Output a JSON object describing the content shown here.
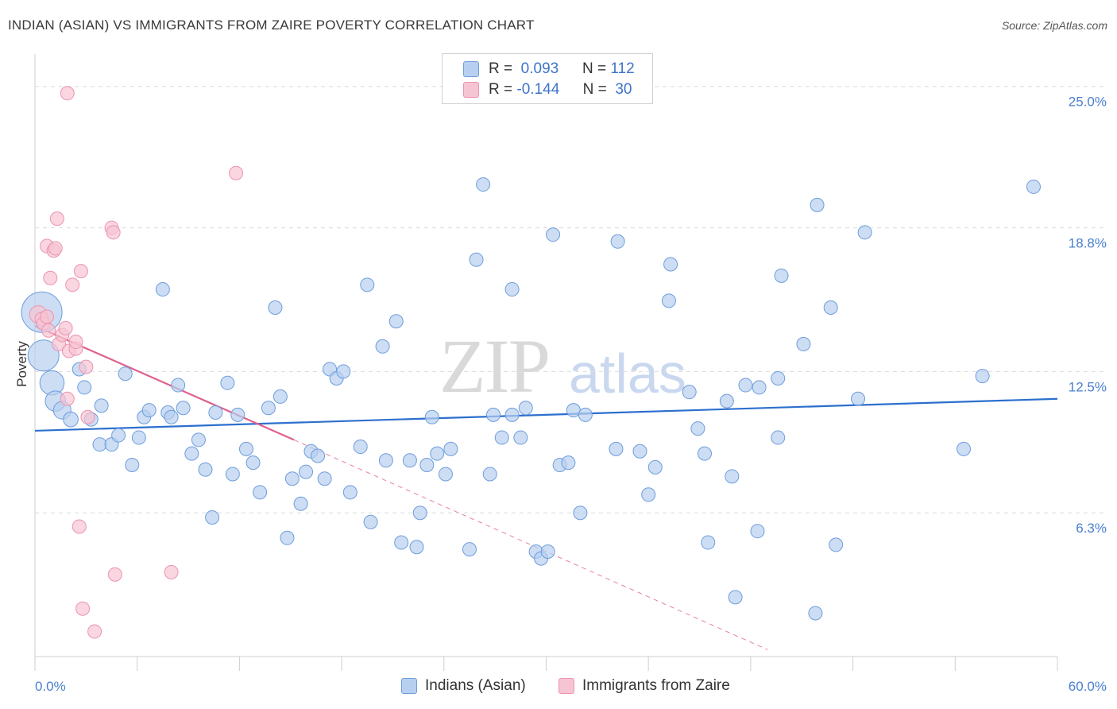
{
  "header": {
    "title": "INDIAN (ASIAN) VS IMMIGRANTS FROM ZAIRE POVERTY CORRELATION CHART",
    "source": "Source: ZipAtlas.com"
  },
  "watermark": {
    "zip": "ZIP",
    "atlas": "atlas"
  },
  "legend": {
    "rows": [
      {
        "r_label": "R =",
        "r_value": "0.093",
        "n_label": "N =",
        "n_value": "112"
      },
      {
        "r_label": "R =",
        "r_value": "-0.144",
        "n_label": "N =",
        "n_value": "30"
      }
    ]
  },
  "bottom_legend": {
    "items": [
      {
        "label": "Indians (Asian)"
      },
      {
        "label": "Immigrants from Zaire"
      }
    ]
  },
  "colors": {
    "blue_fill": "#b7cff0",
    "blue_stroke": "#6e9edc",
    "blue_line": "#2c6fce",
    "pink_fill": "#f7c4d3",
    "pink_stroke": "#ec93b0",
    "pink_line": "#e0608d",
    "grid": "#dcdcdc",
    "tick_text": "#4a7fcf"
  },
  "chart_data": {
    "type": "scatter",
    "title": "INDIAN (ASIAN) VS IMMIGRANTS FROM ZAIRE POVERTY CORRELATION CHART",
    "xlabel": "",
    "ylabel": "Poverty",
    "xlim": [
      0,
      60
    ],
    "ylim": [
      0,
      26
    ],
    "x_tick_labels": [
      "0.0%",
      "60.0%"
    ],
    "y_ticks": [
      {
        "value": 6.3,
        "label": "6.3%"
      },
      {
        "value": 12.5,
        "label": "12.5%"
      },
      {
        "value": 18.8,
        "label": "18.8%"
      },
      {
        "value": 25.0,
        "label": "25.0%"
      }
    ],
    "grid": "horizontal dashed",
    "legend_placement": "top-center",
    "series": [
      {
        "name": "Indians (Asian)",
        "color": "#b7cff0",
        "trend": {
          "x": [
            0,
            60
          ],
          "y": [
            9.9,
            11.3
          ],
          "style": "solid"
        },
        "points": [
          [
            0.4,
            15.1,
            3
          ],
          [
            0.5,
            13.2,
            2.3
          ],
          [
            1.0,
            12.0,
            1.8
          ],
          [
            1.2,
            11.2,
            1.5
          ],
          [
            1.6,
            10.8,
            1.3
          ],
          [
            2.1,
            10.4,
            1.1
          ],
          [
            2.6,
            12.6,
            1
          ],
          [
            2.9,
            11.8,
            1
          ],
          [
            3.3,
            10.4,
            1
          ],
          [
            3.9,
            11.0,
            1
          ],
          [
            3.8,
            9.3,
            1
          ],
          [
            4.5,
            9.3,
            1
          ],
          [
            4.9,
            9.7,
            1
          ],
          [
            5.3,
            12.4,
            1
          ],
          [
            5.7,
            8.4,
            1
          ],
          [
            6.1,
            9.6,
            1
          ],
          [
            6.4,
            10.5,
            1
          ],
          [
            6.7,
            10.8,
            1
          ],
          [
            7.5,
            16.1,
            1
          ],
          [
            7.8,
            10.7,
            1
          ],
          [
            8.0,
            10.5,
            1
          ],
          [
            8.4,
            11.9,
            1
          ],
          [
            8.7,
            10.9,
            1
          ],
          [
            9.2,
            8.9,
            1
          ],
          [
            9.6,
            9.5,
            1
          ],
          [
            10.0,
            8.2,
            1
          ],
          [
            10.4,
            6.1,
            1
          ],
          [
            10.6,
            10.7,
            1
          ],
          [
            11.3,
            12.0,
            1
          ],
          [
            11.6,
            8.0,
            1
          ],
          [
            11.9,
            10.6,
            1
          ],
          [
            12.4,
            9.1,
            1
          ],
          [
            12.8,
            8.5,
            1
          ],
          [
            13.2,
            7.2,
            1
          ],
          [
            13.7,
            10.9,
            1
          ],
          [
            14.1,
            15.3,
            1
          ],
          [
            14.4,
            11.4,
            1
          ],
          [
            14.8,
            5.2,
            1
          ],
          [
            15.1,
            7.8,
            1
          ],
          [
            15.6,
            6.7,
            1
          ],
          [
            15.9,
            8.1,
            1
          ],
          [
            16.2,
            9.0,
            1
          ],
          [
            16.6,
            8.8,
            1
          ],
          [
            17.0,
            7.8,
            1
          ],
          [
            17.3,
            12.6,
            1
          ],
          [
            17.7,
            12.2,
            1
          ],
          [
            18.1,
            12.5,
            1
          ],
          [
            18.5,
            7.2,
            1
          ],
          [
            19.1,
            9.2,
            1
          ],
          [
            19.5,
            16.3,
            1
          ],
          [
            19.7,
            5.9,
            1
          ],
          [
            20.4,
            13.6,
            1
          ],
          [
            20.6,
            8.6,
            1
          ],
          [
            21.2,
            14.7,
            1
          ],
          [
            21.5,
            5.0,
            1
          ],
          [
            22.0,
            8.6,
            1
          ],
          [
            22.4,
            4.8,
            1
          ],
          [
            22.6,
            6.3,
            1
          ],
          [
            23.0,
            8.4,
            1
          ],
          [
            23.3,
            10.5,
            1
          ],
          [
            23.6,
            8.9,
            1
          ],
          [
            24.1,
            8.0,
            1
          ],
          [
            24.4,
            9.1,
            1
          ],
          [
            25.5,
            4.7,
            1
          ],
          [
            25.9,
            17.4,
            1
          ],
          [
            26.3,
            20.7,
            1
          ],
          [
            26.7,
            8.0,
            1
          ],
          [
            26.9,
            10.6,
            1
          ],
          [
            27.4,
            9.6,
            1
          ],
          [
            28.0,
            16.1,
            1
          ],
          [
            28.0,
            10.6,
            1
          ],
          [
            28.5,
            9.6,
            1
          ],
          [
            28.8,
            10.9,
            1
          ],
          [
            29.4,
            4.6,
            1
          ],
          [
            29.7,
            4.3,
            1
          ],
          [
            30.1,
            4.6,
            1
          ],
          [
            30.4,
            18.5,
            1
          ],
          [
            30.8,
            8.4,
            1
          ],
          [
            31.3,
            8.5,
            1
          ],
          [
            31.6,
            10.8,
            1
          ],
          [
            32.0,
            6.3,
            1
          ],
          [
            32.3,
            10.6,
            1
          ],
          [
            34.1,
            9.1,
            1
          ],
          [
            34.2,
            18.2,
            1
          ],
          [
            35.5,
            9.0,
            1
          ],
          [
            36.0,
            7.1,
            1
          ],
          [
            36.4,
            8.3,
            1
          ],
          [
            37.2,
            15.6,
            1
          ],
          [
            37.3,
            17.2,
            1
          ],
          [
            38.4,
            11.6,
            1
          ],
          [
            38.9,
            10.0,
            1
          ],
          [
            39.3,
            8.9,
            1
          ],
          [
            39.5,
            5.0,
            1
          ],
          [
            40.6,
            11.2,
            1
          ],
          [
            40.9,
            7.9,
            1
          ],
          [
            41.1,
            2.6,
            1
          ],
          [
            41.7,
            11.9,
            1
          ],
          [
            42.4,
            5.5,
            1
          ],
          [
            42.5,
            11.8,
            1
          ],
          [
            43.6,
            9.6,
            1
          ],
          [
            43.6,
            12.2,
            1
          ],
          [
            43.8,
            16.7,
            1
          ],
          [
            45.1,
            13.7,
            1
          ],
          [
            45.8,
            1.9,
            1
          ],
          [
            45.9,
            19.8,
            1
          ],
          [
            46.7,
            15.3,
            1
          ],
          [
            47.0,
            4.9,
            1
          ],
          [
            48.3,
            11.3,
            1
          ],
          [
            48.7,
            18.6,
            1
          ],
          [
            54.5,
            9.1,
            1
          ],
          [
            55.6,
            12.3,
            1
          ],
          [
            58.6,
            20.6,
            1
          ]
        ]
      },
      {
        "name": "Immigrants from Zaire",
        "color": "#f7c4d3",
        "trend": {
          "x": [
            0,
            15.2
          ],
          "y": [
            14.5,
            9.5
          ],
          "style": "solid",
          "extended": {
            "x": [
              15.2,
              43.0
            ],
            "y": [
              9.5,
              0.3
            ],
            "style": "dashed"
          }
        },
        "points": [
          [
            0.2,
            15.0,
            1.3
          ],
          [
            0.4,
            14.8,
            1
          ],
          [
            0.5,
            14.6,
            1
          ],
          [
            0.7,
            14.9,
            1
          ],
          [
            0.8,
            14.3,
            1
          ],
          [
            0.7,
            18.0,
            1
          ],
          [
            0.9,
            16.6,
            1
          ],
          [
            1.1,
            17.8,
            1
          ],
          [
            1.2,
            17.9,
            1
          ],
          [
            1.3,
            19.2,
            1
          ],
          [
            1.4,
            13.7,
            1
          ],
          [
            1.6,
            14.1,
            1
          ],
          [
            1.8,
            14.4,
            1
          ],
          [
            1.9,
            11.3,
            1
          ],
          [
            2.0,
            13.4,
            1
          ],
          [
            2.2,
            16.3,
            1
          ],
          [
            2.4,
            13.5,
            1
          ],
          [
            2.4,
            13.8,
            1
          ],
          [
            2.6,
            5.7,
            1
          ],
          [
            2.7,
            16.9,
            1
          ],
          [
            2.8,
            2.1,
            1
          ],
          [
            3.0,
            12.7,
            1
          ],
          [
            3.1,
            10.5,
            1
          ],
          [
            3.5,
            1.1,
            1
          ],
          [
            4.7,
            3.6,
            1
          ],
          [
            4.5,
            18.8,
            1
          ],
          [
            4.6,
            18.6,
            1
          ],
          [
            8.0,
            3.7,
            1
          ],
          [
            11.8,
            21.2,
            1
          ],
          [
            1.9,
            24.7,
            1
          ]
        ]
      }
    ]
  }
}
